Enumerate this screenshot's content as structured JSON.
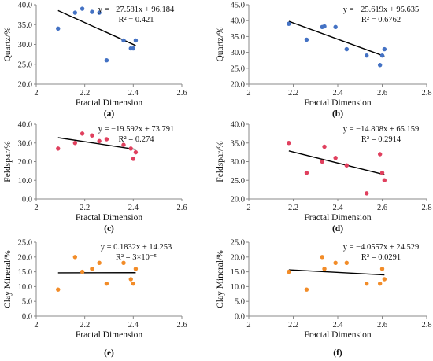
{
  "chart_data": [
    {
      "type": "scatter",
      "panel_label": "(a)",
      "xlabel": "Fractal Dimension",
      "ylabel": "Quartz/%",
      "xlim": [
        2,
        2.6
      ],
      "ylim": [
        20,
        40
      ],
      "xticks": [
        "2",
        "2.2",
        "2.4",
        "2.6"
      ],
      "yticks": [
        "20.0",
        "25.0",
        "30.0",
        "35.0",
        "40.0"
      ],
      "color": "#4472c4",
      "points": [
        [
          2.09,
          34
        ],
        [
          2.16,
          38
        ],
        [
          2.19,
          39
        ],
        [
          2.23,
          38.2
        ],
        [
          2.26,
          38
        ],
        [
          2.29,
          26
        ],
        [
          2.36,
          31
        ],
        [
          2.39,
          29
        ],
        [
          2.4,
          29
        ],
        [
          2.41,
          31
        ]
      ],
      "fit": {
        "slope": -27.581,
        "intercept": 96.184,
        "x_from": 2.09,
        "x_to": 2.41
      },
      "equation": "y = −27.581x + 96.184",
      "r2": "R² = 0.421",
      "legend": "none",
      "grid": false
    },
    {
      "type": "scatter",
      "panel_label": "(b)",
      "xlabel": "Fractal Dimension",
      "ylabel": "Quartz/%",
      "xlim": [
        2,
        2.8
      ],
      "ylim": [
        20,
        45
      ],
      "xticks": [
        "2",
        "2.2",
        "2.4",
        "2.6",
        "2.8"
      ],
      "yticks": [
        "20.0",
        "25.0",
        "30.0",
        "35.0",
        "40.0",
        "45.0"
      ],
      "color": "#4472c4",
      "points": [
        [
          2.18,
          39
        ],
        [
          2.26,
          34
        ],
        [
          2.33,
          38
        ],
        [
          2.34,
          38.2
        ],
        [
          2.39,
          38
        ],
        [
          2.44,
          31
        ],
        [
          2.53,
          29
        ],
        [
          2.59,
          26
        ],
        [
          2.6,
          29
        ],
        [
          2.61,
          31
        ]
      ],
      "fit": {
        "slope": -25.619,
        "intercept": 95.635,
        "x_from": 2.18,
        "x_to": 2.61
      },
      "equation": "y = −25.619x + 95.635",
      "r2": "R² = 0.6762",
      "legend": "none",
      "grid": false
    },
    {
      "type": "scatter",
      "panel_label": "(c)",
      "xlabel": "Fractal Dimension",
      "ylabel": "Feldspar/%",
      "xlim": [
        2,
        2.6
      ],
      "ylim": [
        0,
        40
      ],
      "xticks": [
        "2",
        "2.2",
        "2.4",
        "2.6"
      ],
      "yticks": [
        "0.0",
        "10.0",
        "20.0",
        "30.0",
        "40.0"
      ],
      "color": "#e0405e",
      "points": [
        [
          2.09,
          27
        ],
        [
          2.16,
          30
        ],
        [
          2.19,
          35
        ],
        [
          2.23,
          34
        ],
        [
          2.26,
          31
        ],
        [
          2.29,
          32
        ],
        [
          2.36,
          29
        ],
        [
          2.39,
          27
        ],
        [
          2.4,
          21.5
        ],
        [
          2.41,
          25
        ]
      ],
      "fit": {
        "slope": -19.592,
        "intercept": 73.791,
        "x_from": 2.09,
        "x_to": 2.41
      },
      "equation": "y = −19.592x + 73.791",
      "r2": "R² = 0.274",
      "legend": "none",
      "grid": false
    },
    {
      "type": "scatter",
      "panel_label": "(d)",
      "xlabel": "Fractal Dimension",
      "ylabel": "Feldspar/%",
      "xlim": [
        2,
        2.8
      ],
      "ylim": [
        20,
        40
      ],
      "xticks": [
        "2",
        "2.2",
        "2.4",
        "2.6",
        "2.8"
      ],
      "yticks": [
        "20.0",
        "25.0",
        "30.0",
        "35.0",
        "40.0"
      ],
      "color": "#e0405e",
      "points": [
        [
          2.18,
          35
        ],
        [
          2.26,
          27
        ],
        [
          2.33,
          30
        ],
        [
          2.34,
          34
        ],
        [
          2.39,
          31
        ],
        [
          2.44,
          29
        ],
        [
          2.53,
          21.5
        ],
        [
          2.59,
          32
        ],
        [
          2.6,
          27
        ],
        [
          2.61,
          25
        ]
      ],
      "fit": {
        "slope": -14.808,
        "intercept": 65.159,
        "x_from": 2.18,
        "x_to": 2.61
      },
      "equation": "y = −14.808x + 65.159",
      "r2": "R² = 0.2914",
      "legend": "none",
      "grid": false
    },
    {
      "type": "scatter",
      "panel_label": "(e)",
      "xlabel": "Fractal Dimension",
      "ylabel": "Clay Mineral/%",
      "xlim": [
        2,
        2.6
      ],
      "ylim": [
        0,
        25
      ],
      "xticks": [
        "2",
        "2.2",
        "2.4",
        "2.6"
      ],
      "yticks": [
        "0.0",
        "5.0",
        "10.0",
        "15.0",
        "20.0",
        "25.0"
      ],
      "color": "#f28c28",
      "points": [
        [
          2.09,
          9
        ],
        [
          2.16,
          20
        ],
        [
          2.19,
          15
        ],
        [
          2.23,
          16
        ],
        [
          2.26,
          18
        ],
        [
          2.29,
          11
        ],
        [
          2.36,
          18
        ],
        [
          2.39,
          12.5
        ],
        [
          2.4,
          11
        ],
        [
          2.41,
          16
        ]
      ],
      "fit": {
        "slope": 0.1832,
        "intercept": 14.253,
        "x_from": 2.09,
        "x_to": 2.41
      },
      "equation": "y = 0.1832x + 14.253",
      "r2": "R² = 3×10⁻⁵",
      "legend": "none",
      "grid": false
    },
    {
      "type": "scatter",
      "panel_label": "(f)",
      "xlabel": "Fractal Dimension",
      "ylabel": "Clay Mineral/%",
      "xlim": [
        2,
        2.8
      ],
      "ylim": [
        0,
        25
      ],
      "xticks": [
        "2",
        "2.2",
        "2.4",
        "2.6",
        "2.8"
      ],
      "yticks": [
        "0.0",
        "5.0",
        "10.0",
        "15.0",
        "20.0",
        "25.0"
      ],
      "color": "#f28c28",
      "points": [
        [
          2.18,
          15
        ],
        [
          2.26,
          9
        ],
        [
          2.33,
          20
        ],
        [
          2.34,
          16
        ],
        [
          2.39,
          18
        ],
        [
          2.44,
          18
        ],
        [
          2.53,
          11
        ],
        [
          2.59,
          11
        ],
        [
          2.6,
          16
        ],
        [
          2.61,
          12.5
        ]
      ],
      "fit": {
        "slope": -4.0557,
        "intercept": 24.529,
        "x_from": 2.18,
        "x_to": 2.61
      },
      "equation": "y = −4.0557x + 24.529",
      "r2": "R² = 0.0291",
      "legend": "none",
      "grid": false
    }
  ]
}
